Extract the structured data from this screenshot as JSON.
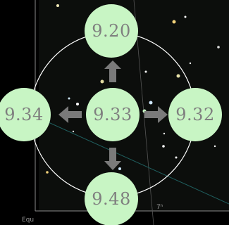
{
  "center_value": "9.33",
  "neighbors": {
    "up": "9.20",
    "left": "9.34",
    "right": "9.32",
    "down": "9.48"
  },
  "sky_labels": {
    "axis_left": "Equ",
    "ra_tick": "7ʰ"
  },
  "colors": {
    "bubble": "#c8f5c4",
    "bubble_text": "#7f7f7f",
    "ring": "#ffffff",
    "arrow": "#7a7a7a"
  }
}
